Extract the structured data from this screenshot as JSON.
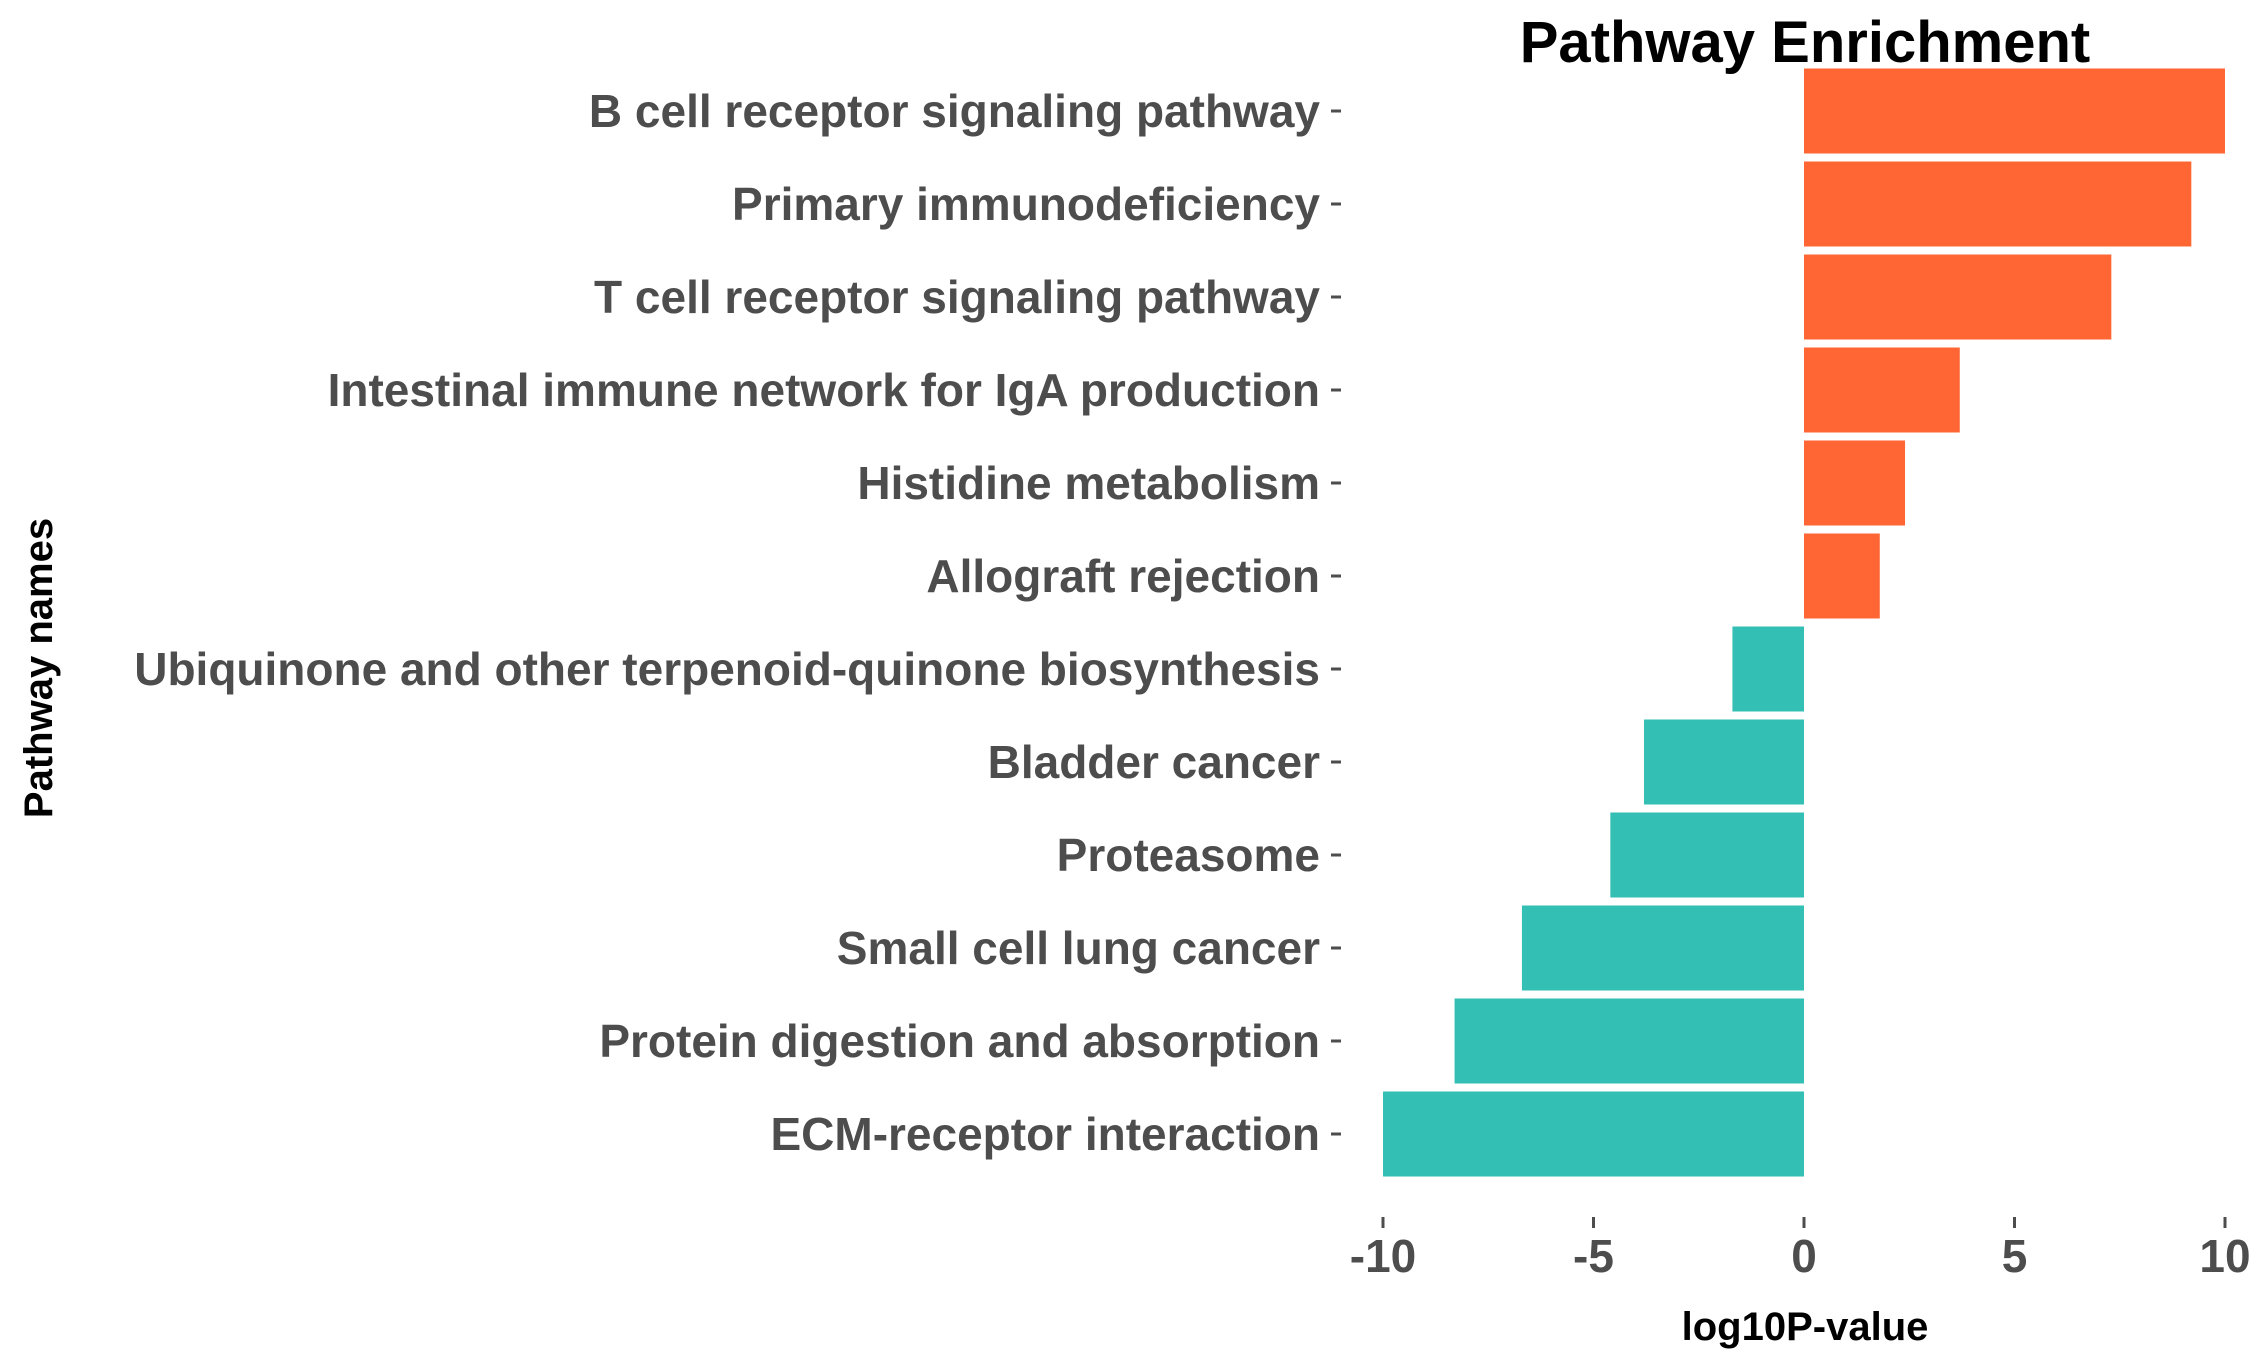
{
  "chart_data": {
    "type": "bar",
    "orientation": "horizontal",
    "title": "Pathway Enrichment",
    "xlabel": "log10P-value",
    "ylabel": "Pathway names",
    "xlim": [
      -10,
      10
    ],
    "xticks": [
      -10,
      -5,
      0,
      5,
      10
    ],
    "xtick_labels": [
      "-10",
      "-5",
      "0",
      "5",
      "10"
    ],
    "grid": false,
    "legend": "none",
    "categories": [
      "B cell receptor signaling pathway",
      "Primary immunodeficiency",
      "T cell receptor signaling pathway",
      "Intestinal immune network for IgA production",
      "Histidine metabolism",
      "Allograft rejection",
      "Ubiquinone and other terpenoid-quinone biosynthesis",
      "Bladder cancer",
      "Proteasome",
      "Small cell lung cancer",
      "Protein digestion and absorption",
      "ECM-receptor interaction"
    ],
    "values": [
      10.0,
      9.2,
      7.3,
      3.7,
      2.4,
      1.8,
      -1.7,
      -3.8,
      -4.6,
      -6.7,
      -8.3,
      -10.0
    ],
    "colors": {
      "positive": "#ff6633",
      "negative": "#33bfb3"
    }
  }
}
